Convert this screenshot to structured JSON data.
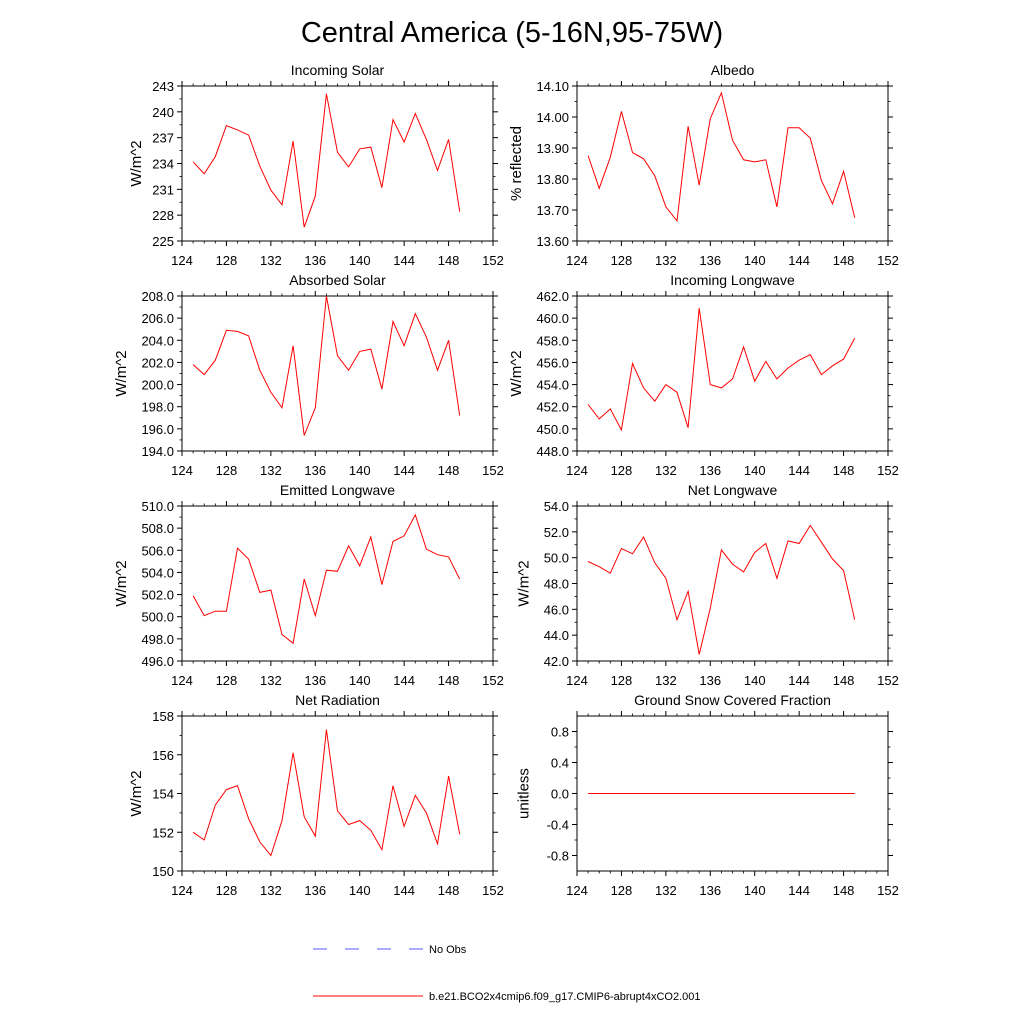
{
  "figure": {
    "title": "Central America (5-16N,95-75W)",
    "colors": {
      "model_line": "#ff0000",
      "obs_line": "#5a5aff",
      "axis": "#000000"
    },
    "legend": {
      "entries": [
        {
          "label": "No Obs",
          "style": "dashed",
          "color": "#5a5aff"
        },
        {
          "label": "b.e21.BCO2x4cmip6.f09_g17.CMIP6-abrupt4xCO2.001",
          "style": "solid",
          "color": "#ff0000"
        }
      ]
    }
  },
  "chart_data": [
    {
      "type": "line",
      "title": "Incoming Solar",
      "ylabel": "W/m^2",
      "xlim": [
        124,
        152
      ],
      "xticks": [
        124,
        128,
        132,
        136,
        140,
        144,
        148,
        152
      ],
      "ylim": [
        225,
        243
      ],
      "yticks": [
        225,
        228,
        231,
        234,
        237,
        240,
        243
      ],
      "ytick_labels": [
        "225",
        "228",
        "231",
        "234",
        "237",
        "240",
        "243"
      ],
      "series": [
        {
          "name": "b.e21.BCO2x4cmip6.f09_g17.CMIP6-abrupt4xCO2.001",
          "x": [
            125,
            126,
            127,
            128,
            129,
            130,
            131,
            132,
            133,
            134,
            135,
            136,
            137,
            138,
            139,
            140,
            141,
            142,
            143,
            144,
            145,
            146,
            147,
            148,
            149
          ],
          "y": [
            234.2,
            232.8,
            234.8,
            238.4,
            237.9,
            237.3,
            233.7,
            230.9,
            229.2,
            236.6,
            226.6,
            230.2,
            242.1,
            235.3,
            233.6,
            235.7,
            235.9,
            231.2,
            239.1,
            236.5,
            239.8,
            236.8,
            233.2,
            236.8,
            228.4
          ]
        }
      ]
    },
    {
      "type": "line",
      "title": "Albedo",
      "ylabel": "% reflected",
      "xlim": [
        124,
        152
      ],
      "xticks": [
        124,
        128,
        132,
        136,
        140,
        144,
        148,
        152
      ],
      "ylim": [
        13.6,
        14.1
      ],
      "yticks": [
        13.6,
        13.7,
        13.8,
        13.9,
        14.0,
        14.1
      ],
      "ytick_labels": [
        "13.60",
        "13.70",
        "13.80",
        "13.90",
        "14.00",
        "14.10"
      ],
      "series": [
        {
          "name": "b.e21.BCO2x4cmip6.f09_g17.CMIP6-abrupt4xCO2.001",
          "x": [
            125,
            126,
            127,
            128,
            129,
            130,
            131,
            132,
            133,
            134,
            135,
            136,
            137,
            138,
            139,
            140,
            141,
            142,
            143,
            144,
            145,
            146,
            147,
            148,
            149
          ],
          "y": [
            13.875,
            13.77,
            13.87,
            14.018,
            13.885,
            13.865,
            13.81,
            13.71,
            13.665,
            13.97,
            13.78,
            13.995,
            14.078,
            13.925,
            13.862,
            13.855,
            13.862,
            13.71,
            13.965,
            13.965,
            13.932,
            13.795,
            13.72,
            13.825,
            13.675
          ]
        }
      ]
    },
    {
      "type": "line",
      "title": "Absorbed Solar",
      "ylabel": "W/m^2",
      "xlim": [
        124,
        152
      ],
      "xticks": [
        124,
        128,
        132,
        136,
        140,
        144,
        148,
        152
      ],
      "ylim": [
        194,
        208
      ],
      "yticks": [
        194,
        196,
        198,
        200,
        202,
        204,
        206,
        208
      ],
      "ytick_labels": [
        "194.0",
        "196.0",
        "198.0",
        "200.0",
        "202.0",
        "204.0",
        "206.0",
        "208.0"
      ],
      "series": [
        {
          "name": "b.e21.BCO2x4cmip6.f09_g17.CMIP6-abrupt4xCO2.001",
          "x": [
            125,
            126,
            127,
            128,
            129,
            130,
            131,
            132,
            133,
            134,
            135,
            136,
            137,
            138,
            139,
            140,
            141,
            142,
            143,
            144,
            145,
            146,
            147,
            148,
            149
          ],
          "y": [
            201.8,
            200.9,
            202.2,
            204.9,
            204.8,
            204.4,
            201.3,
            199.3,
            197.9,
            203.5,
            195.4,
            197.9,
            208.0,
            202.6,
            201.3,
            203.0,
            203.2,
            199.6,
            205.7,
            203.5,
            206.4,
            204.3,
            201.3,
            204.0,
            197.2
          ]
        }
      ]
    },
    {
      "type": "line",
      "title": "Incoming Longwave",
      "ylabel": "W/m^2",
      "xlim": [
        124,
        152
      ],
      "xticks": [
        124,
        128,
        132,
        136,
        140,
        144,
        148,
        152
      ],
      "ylim": [
        448,
        462
      ],
      "yticks": [
        448,
        450,
        452,
        454,
        456,
        458,
        460,
        462
      ],
      "ytick_labels": [
        "448.0",
        "450.0",
        "452.0",
        "454.0",
        "456.0",
        "458.0",
        "460.0",
        "462.0"
      ],
      "series": [
        {
          "name": "b.e21.BCO2x4cmip6.f09_g17.CMIP6-abrupt4xCO2.001",
          "x": [
            125,
            126,
            127,
            128,
            129,
            130,
            131,
            132,
            133,
            134,
            135,
            136,
            137,
            138,
            139,
            140,
            141,
            142,
            143,
            144,
            145,
            146,
            147,
            148,
            149
          ],
          "y": [
            452.2,
            450.9,
            451.8,
            449.9,
            455.9,
            453.7,
            452.5,
            454.0,
            453.3,
            450.1,
            460.9,
            454.0,
            453.7,
            454.5,
            457.4,
            454.3,
            456.1,
            454.5,
            455.5,
            456.2,
            456.7,
            454.9,
            455.7,
            456.3,
            458.2
          ]
        }
      ]
    },
    {
      "type": "line",
      "title": "Emitted Longwave",
      "ylabel": "W/m^2",
      "xlim": [
        124,
        152
      ],
      "xticks": [
        124,
        128,
        132,
        136,
        140,
        144,
        148,
        152
      ],
      "ylim": [
        496,
        510
      ],
      "yticks": [
        496,
        498,
        500,
        502,
        504,
        506,
        508,
        510
      ],
      "ytick_labels": [
        "496.0",
        "498.0",
        "500.0",
        "502.0",
        "504.0",
        "506.0",
        "508.0",
        "510.0"
      ],
      "series": [
        {
          "name": "b.e21.BCO2x4cmip6.f09_g17.CMIP6-abrupt4xCO2.001",
          "x": [
            125,
            126,
            127,
            128,
            129,
            130,
            131,
            132,
            133,
            134,
            135,
            136,
            137,
            138,
            139,
            140,
            141,
            142,
            143,
            144,
            145,
            146,
            147,
            148,
            149
          ],
          "y": [
            501.9,
            500.1,
            500.5,
            500.5,
            506.2,
            505.2,
            502.2,
            502.4,
            498.4,
            497.6,
            503.4,
            500.1,
            504.2,
            504.1,
            506.4,
            504.6,
            507.2,
            502.9,
            506.8,
            507.3,
            509.2,
            506.1,
            505.6,
            505.4,
            503.4
          ]
        }
      ]
    },
    {
      "type": "line",
      "title": "Net Longwave",
      "ylabel": "W/m^2",
      "xlim": [
        124,
        152
      ],
      "xticks": [
        124,
        128,
        132,
        136,
        140,
        144,
        148,
        152
      ],
      "ylim": [
        42,
        54
      ],
      "yticks": [
        42,
        44,
        46,
        48,
        50,
        52,
        54
      ],
      "ytick_labels": [
        "42.0",
        "44.0",
        "46.0",
        "48.0",
        "50.0",
        "52.0",
        "54.0"
      ],
      "series": [
        {
          "name": "b.e21.BCO2x4cmip6.f09_g17.CMIP6-abrupt4xCO2.001",
          "x": [
            125,
            126,
            127,
            128,
            129,
            130,
            131,
            132,
            133,
            134,
            135,
            136,
            137,
            138,
            139,
            140,
            141,
            142,
            143,
            144,
            145,
            146,
            147,
            148,
            149
          ],
          "y": [
            49.7,
            49.3,
            48.8,
            50.7,
            50.3,
            51.6,
            49.6,
            48.4,
            45.2,
            47.4,
            42.5,
            46.1,
            50.6,
            49.5,
            48.9,
            50.4,
            51.1,
            48.4,
            51.3,
            51.1,
            52.5,
            51.2,
            49.9,
            49.0,
            45.2
          ]
        }
      ]
    },
    {
      "type": "line",
      "title": "Net Radiation",
      "ylabel": "W/m^2",
      "xlim": [
        124,
        152
      ],
      "xticks": [
        124,
        128,
        132,
        136,
        140,
        144,
        148,
        152
      ],
      "ylim": [
        150,
        158
      ],
      "yticks": [
        150,
        152,
        154,
        156,
        158
      ],
      "ytick_labels": [
        "150",
        "152",
        "154",
        "156",
        "158"
      ],
      "series": [
        {
          "name": "b.e21.BCO2x4cmip6.f09_g17.CMIP6-abrupt4xCO2.001",
          "x": [
            125,
            126,
            127,
            128,
            129,
            130,
            131,
            132,
            133,
            134,
            135,
            136,
            137,
            138,
            139,
            140,
            141,
            142,
            143,
            144,
            145,
            146,
            147,
            148,
            149
          ],
          "y": [
            152.0,
            151.6,
            153.4,
            154.2,
            154.4,
            152.7,
            151.5,
            150.8,
            152.6,
            156.1,
            152.8,
            151.8,
            157.3,
            153.1,
            152.4,
            152.6,
            152.1,
            151.1,
            154.4,
            152.3,
            153.9,
            153.0,
            151.4,
            154.9,
            151.9
          ]
        }
      ]
    },
    {
      "type": "line",
      "title": "Ground Snow Covered Fraction",
      "ylabel": "unitless",
      "xlim": [
        124,
        152
      ],
      "xticks": [
        124,
        128,
        132,
        136,
        140,
        144,
        148,
        152
      ],
      "ylim": [
        -1.0,
        1.0
      ],
      "yticks": [
        -0.8,
        -0.4,
        0.0,
        0.4,
        0.8
      ],
      "ytick_labels": [
        "-0.8",
        "-0.4",
        "0.0",
        "0.4",
        "0.8"
      ],
      "series": [
        {
          "name": "b.e21.BCO2x4cmip6.f09_g17.CMIP6-abrupt4xCO2.001",
          "x": [
            125,
            149
          ],
          "y": [
            0.0,
            0.0
          ]
        }
      ]
    }
  ]
}
